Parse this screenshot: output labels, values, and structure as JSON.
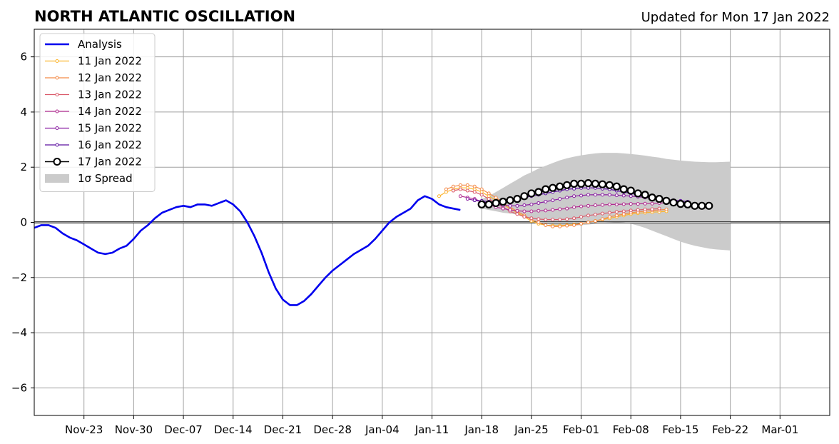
{
  "chart_data": {
    "type": "line",
    "title": "NORTH ATLANTIC OSCILLATION",
    "subtitle": "Updated for Mon 17 Jan 2022",
    "xlabel": "",
    "ylabel": "",
    "x_axis": {
      "type": "date",
      "min": "2021-11-16",
      "max": "2022-03-08",
      "tick_dates": [
        "2021-11-23",
        "2021-11-30",
        "2021-12-07",
        "2021-12-14",
        "2021-12-21",
        "2021-12-28",
        "2022-01-04",
        "2022-01-11",
        "2022-01-18",
        "2022-01-25",
        "2022-02-01",
        "2022-02-08",
        "2022-02-15",
        "2022-02-22",
        "2022-03-01"
      ],
      "tick_labels": [
        "Nov-23",
        "Nov-30",
        "Dec-07",
        "Dec-14",
        "Dec-21",
        "Dec-28",
        "Jan-04",
        "Jan-11",
        "Jan-18",
        "Jan-25",
        "Feb-01",
        "Feb-08",
        "Feb-15",
        "Feb-22",
        "Mar-01"
      ]
    },
    "ylim": [
      -7,
      7
    ],
    "y_ticks": [
      -6,
      -4,
      -2,
      0,
      2,
      4,
      6
    ],
    "y_tick_labels": [
      "−6",
      "−4",
      "−2",
      "0",
      "2",
      "4",
      "6"
    ],
    "grid": true,
    "zero_line": true,
    "legend_position": "top-left",
    "analysis": {
      "name": "Analysis",
      "color": "#0000ee",
      "start": "2021-11-16",
      "values": [
        -0.2,
        -0.1,
        -0.1,
        -0.2,
        -0.4,
        -0.55,
        -0.65,
        -0.8,
        -0.95,
        -1.1,
        -1.15,
        -1.1,
        -0.95,
        -0.85,
        -0.6,
        -0.3,
        -0.1,
        0.15,
        0.35,
        0.45,
        0.55,
        0.6,
        0.55,
        0.65,
        0.65,
        0.6,
        0.7,
        0.8,
        0.65,
        0.4,
        0.0,
        -0.5,
        -1.1,
        -1.8,
        -2.4,
        -2.8,
        -3.0,
        -3.0,
        -2.85,
        -2.6,
        -2.3,
        -2.0,
        -1.75,
        -1.55,
        -1.35,
        -1.15,
        -1.0,
        -0.85,
        -0.6,
        -0.3,
        0.0,
        0.2,
        0.35,
        0.5,
        0.8,
        0.95,
        0.85,
        0.65,
        0.55,
        0.5,
        0.45
      ]
    },
    "forecasts": [
      {
        "name": "11 Jan 2022",
        "color": "#fcb52e",
        "start": "2022-01-12",
        "values": [
          0.95,
          1.1,
          1.2,
          1.25,
          1.25,
          1.2,
          1.1,
          0.95,
          0.8,
          0.65,
          0.5,
          0.35,
          0.2,
          0.05,
          -0.05,
          -0.1,
          -0.12,
          -0.12,
          -0.1,
          -0.08,
          -0.05,
          0.0,
          0.05,
          0.1,
          0.15,
          0.2,
          0.25,
          0.3,
          0.33,
          0.35,
          0.37,
          0.38,
          0.4
        ]
      },
      {
        "name": "12 Jan 2022",
        "color": "#f38a48",
        "start": "2022-01-13",
        "values": [
          1.2,
          1.3,
          1.35,
          1.35,
          1.3,
          1.2,
          1.05,
          0.9,
          0.7,
          0.55,
          0.4,
          0.25,
          0.1,
          0.0,
          -0.1,
          -0.15,
          -0.15,
          -0.12,
          -0.1,
          -0.05,
          0.0,
          0.05,
          0.12,
          0.2,
          0.25,
          0.3,
          0.35,
          0.38,
          0.4,
          0.43,
          0.45,
          0.47
        ]
      },
      {
        "name": "13 Jan 2022",
        "color": "#da5a6a",
        "start": "2022-01-14",
        "values": [
          1.15,
          1.2,
          1.15,
          1.1,
          1.0,
          0.85,
          0.7,
          0.55,
          0.4,
          0.3,
          0.2,
          0.15,
          0.12,
          0.1,
          0.1,
          0.1,
          0.12,
          0.15,
          0.2,
          0.25,
          0.28,
          0.32,
          0.35,
          0.38,
          0.4,
          0.43,
          0.45,
          0.47,
          0.48,
          0.5
        ]
      },
      {
        "name": "14 Jan 2022",
        "color": "#b12a90",
        "start": "2022-01-15",
        "values": [
          0.95,
          0.9,
          0.85,
          0.75,
          0.65,
          0.55,
          0.5,
          0.45,
          0.42,
          0.4,
          0.4,
          0.42,
          0.43,
          0.45,
          0.48,
          0.5,
          0.55,
          0.58,
          0.6,
          0.62,
          0.63,
          0.65,
          0.65,
          0.66,
          0.67,
          0.67,
          0.68,
          0.68,
          0.7,
          0.7
        ]
      },
      {
        "name": "15 Jan 2022",
        "color": "#8a1fa2",
        "start": "2022-01-16",
        "values": [
          0.85,
          0.8,
          0.75,
          0.7,
          0.65,
          0.62,
          0.6,
          0.6,
          0.62,
          0.65,
          0.7,
          0.75,
          0.8,
          0.85,
          0.9,
          0.95,
          0.97,
          1.0,
          1.0,
          1.0,
          1.0,
          0.98,
          0.97,
          0.95,
          0.93,
          0.9,
          0.88,
          0.85,
          0.82,
          0.8,
          0.78
        ]
      },
      {
        "name": "16 Jan 2022",
        "color": "#5c10a0",
        "start": "2022-01-17",
        "values": [
          0.8,
          0.78,
          0.75,
          0.72,
          0.75,
          0.8,
          0.85,
          0.9,
          0.95,
          1.0,
          1.05,
          1.1,
          1.15,
          1.2,
          1.22,
          1.25,
          1.25,
          1.25,
          1.22,
          1.2,
          1.15,
          1.1,
          1.05,
          1.0,
          0.95,
          0.9,
          0.85,
          0.82,
          0.8,
          0.78,
          0.75
        ]
      },
      {
        "name": "17 Jan 2022",
        "color": "#000000",
        "start": "2022-01-18",
        "values": [
          0.65,
          0.65,
          0.7,
          0.75,
          0.8,
          0.85,
          0.95,
          1.05,
          1.1,
          1.2,
          1.25,
          1.3,
          1.35,
          1.4,
          1.4,
          1.42,
          1.4,
          1.38,
          1.35,
          1.3,
          1.2,
          1.15,
          1.05,
          1.0,
          0.9,
          0.85,
          0.78,
          0.72,
          0.67,
          0.65,
          0.6,
          0.6,
          0.6
        ]
      }
    ],
    "spread": {
      "name": "1σ Spread",
      "color": "#cbcbcb",
      "start": "2022-01-18",
      "upper": [
        0.85,
        0.95,
        1.1,
        1.25,
        1.4,
        1.55,
        1.7,
        1.82,
        1.95,
        2.05,
        2.15,
        2.25,
        2.32,
        2.38,
        2.43,
        2.47,
        2.5,
        2.52,
        2.52,
        2.52,
        2.5,
        2.48,
        2.45,
        2.42,
        2.38,
        2.35,
        2.3,
        2.27,
        2.24,
        2.22,
        2.2,
        2.19,
        2.18,
        2.18,
        2.19,
        2.2
      ],
      "lower": [
        0.5,
        0.45,
        0.4,
        0.35,
        0.32,
        0.28,
        0.2,
        0.1,
        0.0,
        -0.05,
        -0.1,
        -0.12,
        -0.12,
        -0.12,
        -0.1,
        -0.08,
        -0.05,
        -0.02,
        0.0,
        0.02,
        0.0,
        -0.05,
        -0.12,
        -0.2,
        -0.3,
        -0.4,
        -0.5,
        -0.6,
        -0.7,
        -0.78,
        -0.85,
        -0.9,
        -0.95,
        -0.98,
        -1.0,
        -1.02
      ]
    }
  }
}
